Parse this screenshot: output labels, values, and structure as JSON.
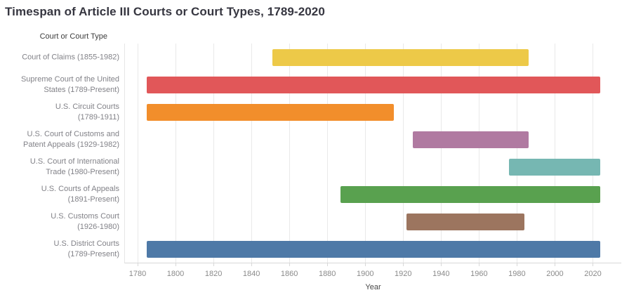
{
  "title": "Timespan of Article III Courts or Court Types, 1789-2020",
  "y_axis_header": "Court or Court Type",
  "x_axis_label": "Year",
  "colors": {
    "title_text": "#363640",
    "label_text": "#828288",
    "gridline": "#e9e9e9",
    "axis_line": "#d8d8d8",
    "background": "#ffffff"
  },
  "chart_data": {
    "type": "bar",
    "subtype": "gantt-timeline",
    "orientation": "horizontal",
    "title": "Timespan of Article III Courts or Court Types, 1789-2020",
    "xlabel": "Year",
    "ylabel": "Court or Court Type",
    "grid": "vertical-only",
    "legend": "none",
    "x_ticks": [
      1780,
      1800,
      1820,
      1840,
      1860,
      1880,
      1900,
      1920,
      1940,
      1960,
      1980,
      2000,
      2020
    ],
    "xlim": [
      1773,
      2034
    ],
    "present_year": 2020,
    "categories": [
      "Court of Claims (1855-1982)",
      "Supreme Court of the United States (1789-Present)",
      "U.S. Circuit Courts (1789-1911)",
      "U.S. Court of Customs and Patent Appeals (1929-1982)",
      "U.S. Court of International Trade (1980-Present)",
      "U.S. Courts of Appeals (1891-Present)",
      "U.S. Customs Court (1926-1980)",
      "U.S. District Courts (1789-Present)"
    ],
    "bars": [
      {
        "label": "Court of Claims (1855-1982)",
        "start": 1855,
        "end": 1982,
        "present": false,
        "color": "#EDC948"
      },
      {
        "label": "Supreme Court of the United\nStates (1789-Present)",
        "start": 1789,
        "end": 2020,
        "present": true,
        "color": "#E15759"
      },
      {
        "label": "U.S. Circuit Courts\n(1789-1911)",
        "start": 1789,
        "end": 1911,
        "present": false,
        "color": "#F28E2B"
      },
      {
        "label": "U.S. Court of Customs and\nPatent Appeals (1929-1982)",
        "start": 1929,
        "end": 1982,
        "present": false,
        "color": "#B07AA1"
      },
      {
        "label": "U.S. Court of International\nTrade (1980-Present)",
        "start": 1980,
        "end": 2020,
        "present": true,
        "color": "#76B7B2"
      },
      {
        "label": "U.S. Courts of Appeals\n(1891-Present)",
        "start": 1891,
        "end": 2020,
        "present": true,
        "color": "#59A14F"
      },
      {
        "label": "U.S. Customs Court\n(1926-1980)",
        "start": 1926,
        "end": 1980,
        "present": false,
        "color": "#9C755F"
      },
      {
        "label": "U.S. District Courts\n(1789-Present)",
        "start": 1789,
        "end": 2020,
        "present": true,
        "color": "#4E79A7"
      }
    ]
  }
}
